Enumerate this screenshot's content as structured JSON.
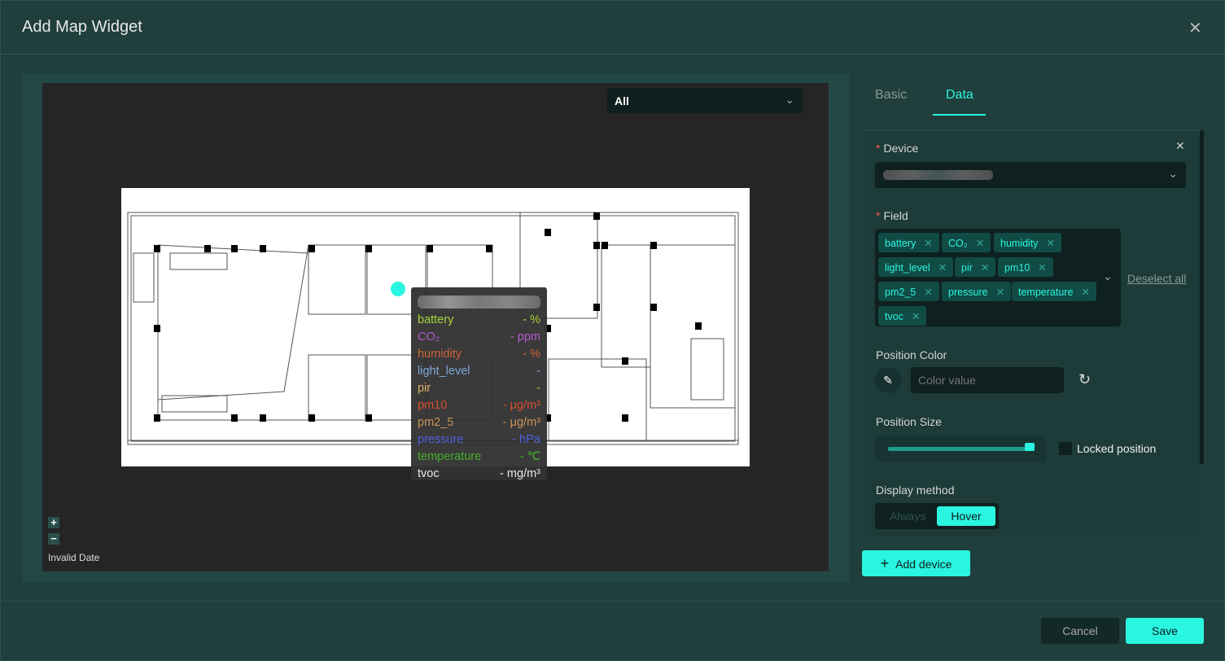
{
  "dialog": {
    "title": "Add Map Widget",
    "close_icon": "close-icon"
  },
  "map": {
    "filter_value": "All",
    "zoom_in": "+",
    "zoom_out": "−",
    "status": "Invalid Date",
    "tooltip": {
      "rows": [
        {
          "field": "battery",
          "value": "- %",
          "color": "#a8d43a"
        },
        {
          "field": "CO₂",
          "value": "- ppm",
          "color": "#b35ad0"
        },
        {
          "field": "humidity",
          "value": "- %",
          "color": "#d0633a"
        },
        {
          "field": "light_level",
          "value": "-",
          "color": "#7fa8d8"
        },
        {
          "field": "pir",
          "value": "-",
          "color": "#d9b060"
        },
        {
          "field": "pm10",
          "value": "- μg/m³",
          "color": "#d9502f"
        },
        {
          "field": "pm2_5",
          "value": "- μg/m³",
          "color": "#c8935a"
        },
        {
          "field": "pressure",
          "value": "- hPa",
          "color": "#5060e0"
        },
        {
          "field": "temperature",
          "value": "- ℃",
          "color": "#45b02a"
        },
        {
          "field": "tvoc",
          "value": "- mg/m³",
          "color": "#e8e8e8"
        }
      ]
    },
    "marker_color": "#2af5e0"
  },
  "tabs": [
    {
      "label": "Basic",
      "active": false
    },
    {
      "label": "Data",
      "active": true
    }
  ],
  "form": {
    "device_label": "Device",
    "required_mark": "*",
    "field_label": "Field",
    "fields": [
      "battery",
      "CO₂",
      "humidity",
      "light_level",
      "pir",
      "pm10",
      "pm2_5",
      "pressure",
      "temperature",
      "tvoc"
    ],
    "deselect_all": "Deselect all",
    "position_color_label": "Position Color",
    "color_placeholder": "Color value",
    "position_size_label": "Position Size",
    "position_size_value": 100,
    "locked_position_label": "Locked position",
    "locked_position_checked": false,
    "display_method_label": "Display method",
    "display_options": [
      "Always",
      "Hover"
    ],
    "display_selected": "Hover"
  },
  "add_device": "Add device",
  "footer": {
    "cancel": "Cancel",
    "save": "Save"
  },
  "colors": {
    "accent": "#2af5e0",
    "background": "#1f3e3c"
  }
}
